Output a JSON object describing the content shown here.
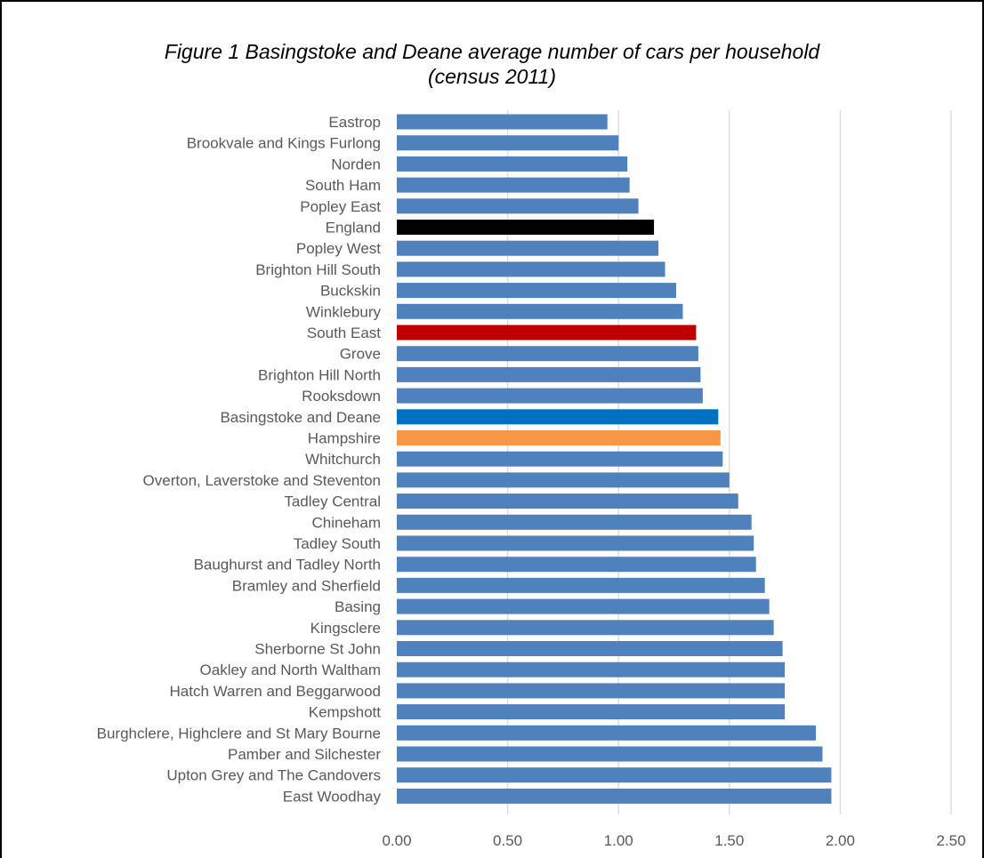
{
  "chart_data": {
    "type": "bar",
    "orientation": "horizontal",
    "title_line1": "Figure 1 Basingstoke and Deane average number of cars per household",
    "title_line2": "(census 2011)",
    "xlabel": "",
    "ylabel": "",
    "xlim": [
      0,
      2.5
    ],
    "x_ticks": [
      "0.00",
      "0.50",
      "1.00",
      "1.50",
      "2.00",
      "2.50"
    ],
    "x_tick_values": [
      0,
      0.5,
      1.0,
      1.5,
      2.0,
      2.5
    ],
    "grid": "vertical",
    "legend": "none",
    "categories": [
      "Eastrop",
      "Brookvale and Kings Furlong",
      "Norden",
      "South Ham",
      "Popley East",
      "England",
      "Popley West",
      "Brighton Hill South",
      "Buckskin",
      "Winklebury",
      "South East",
      "Grove",
      "Brighton Hill North",
      "Rooksdown",
      "Basingstoke and Deane",
      "Hampshire",
      "Whitchurch",
      "Overton, Laverstoke and Steventon",
      "Tadley Central",
      "Chineham",
      "Tadley South",
      "Baughurst and Tadley North",
      "Bramley and Sherfield",
      "Basing",
      "Kingsclere",
      "Sherborne St John",
      "Oakley and North Waltham",
      "Hatch Warren and Beggarwood",
      "Kempshott",
      "Burghclere, Highclere and St Mary Bourne",
      "Pamber and Silchester",
      "Upton Grey and The Candovers",
      "East Woodhay"
    ],
    "values": [
      0.95,
      1.0,
      1.04,
      1.05,
      1.09,
      1.16,
      1.18,
      1.21,
      1.26,
      1.29,
      1.35,
      1.36,
      1.37,
      1.38,
      1.45,
      1.46,
      1.47,
      1.5,
      1.54,
      1.6,
      1.61,
      1.62,
      1.66,
      1.68,
      1.7,
      1.74,
      1.75,
      1.75,
      1.75,
      1.89,
      1.92,
      1.96,
      1.96
    ],
    "colors": {
      "default": "#4f81bd",
      "England": "#000000",
      "South East": "#c00000",
      "Basingstoke and Deane": "#0070c0",
      "Hampshire": "#f79646"
    },
    "gridline_color": "#d9d9d9"
  }
}
